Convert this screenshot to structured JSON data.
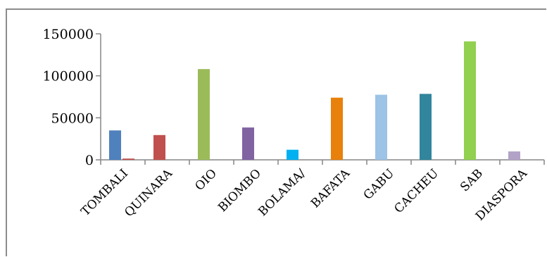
{
  "chart_data": {
    "type": "bar",
    "categories": [
      "TOMBALI",
      "QUINARA",
      "OIO",
      "BIOMBO",
      "BOLAMA/",
      "BAFATA",
      "GABU",
      "CACHEU",
      "SAB",
      "DIASPORA"
    ],
    "series": [
      {
        "values": [
          35000,
          29500,
          108000,
          38500,
          12000,
          74000,
          77500,
          78500,
          141000,
          10000
        ]
      },
      {
        "values": [
          1500,
          null,
          null,
          null,
          null,
          null,
          null,
          null,
          null,
          null
        ]
      }
    ],
    "bar_colors": [
      "#4f81bd",
      "#c0504d",
      "#9bbb59",
      "#8064a2",
      "#00b0f0",
      "#e8800c",
      "#9dc3e6",
      "#31859c",
      "#92d050",
      "#b3a2c7"
    ],
    "second_series_color": "#c0504d",
    "ylim": [
      0,
      150000
    ],
    "yticks": [
      0,
      50000,
      100000,
      150000
    ],
    "ytick_labels": [
      "0",
      "50000",
      "100000",
      "150000"
    ],
    "grid": false,
    "legend": "none",
    "title": "",
    "xlabel": "",
    "ylabel": ""
  }
}
